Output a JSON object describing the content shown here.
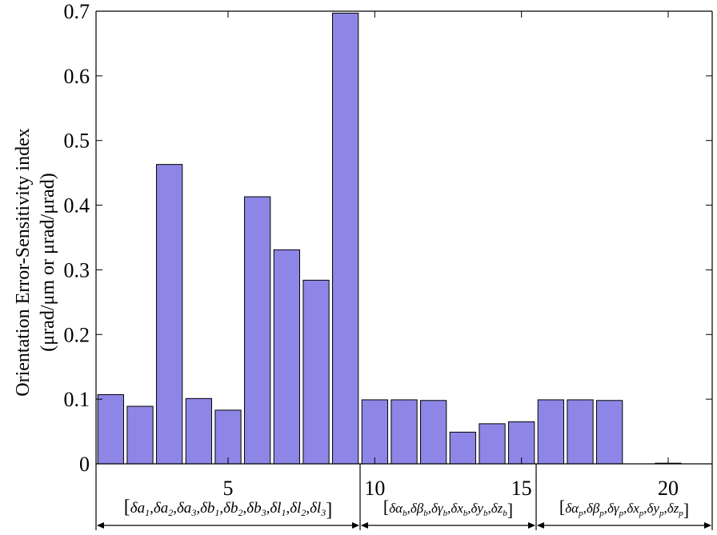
{
  "chart_data": {
    "type": "bar",
    "ylabel_line1": "Orientation Error-Sensitivity index",
    "ylabel_line2": "(μrad/μm or μrad/μrad)",
    "ylim": [
      0,
      0.7
    ],
    "yticks": [
      0,
      0.1,
      0.2,
      0.3,
      0.4,
      0.5,
      0.6,
      0.7
    ],
    "ytick_labels": [
      "0",
      "0.1",
      "0.2",
      "0.3",
      "0.4",
      "0.5",
      "0.6",
      "0.7"
    ],
    "x": [
      1,
      2,
      3,
      4,
      5,
      6,
      7,
      8,
      9,
      10,
      11,
      12,
      13,
      14,
      15,
      16,
      17,
      18,
      19,
      20,
      21
    ],
    "xlim": [
      0.5,
      21.5
    ],
    "xticks": [
      5,
      10,
      15,
      20
    ],
    "xtick_labels": [
      "5",
      "10",
      "15",
      "20"
    ],
    "values": [
      0.107,
      0.089,
      0.463,
      0.101,
      0.083,
      0.413,
      0.331,
      0.284,
      0.697,
      0.099,
      0.099,
      0.098,
      0.049,
      0.062,
      0.065,
      0.099,
      0.099,
      0.098,
      0.0,
      0.001,
      0.0
    ],
    "bar_color": "#8e86e6",
    "bar_edge_color": "#000000",
    "grid": false,
    "groups": [
      {
        "start": 1,
        "end": 9,
        "symbols": [
          "a",
          "a",
          "a",
          "b",
          "b",
          "b",
          "l",
          "l",
          "l"
        ],
        "subscripts": [
          "1",
          "2",
          "3",
          "1",
          "2",
          "3",
          "1",
          "2",
          "3"
        ]
      },
      {
        "start": 10,
        "end": 15,
        "symbols": [
          "α",
          "β",
          "γ",
          "x",
          "y",
          "z"
        ],
        "subscripts": [
          "b",
          "b",
          "b",
          "b",
          "b",
          "b"
        ]
      },
      {
        "start": 16,
        "end": 21,
        "symbols": [
          "α",
          "β",
          "γ",
          "x",
          "y",
          "z"
        ],
        "subscripts": [
          "p",
          "p",
          "p",
          "p",
          "p",
          "p"
        ]
      }
    ],
    "delta": "δ",
    "separator": ",",
    "bracket_open": "[",
    "bracket_close": "]"
  }
}
